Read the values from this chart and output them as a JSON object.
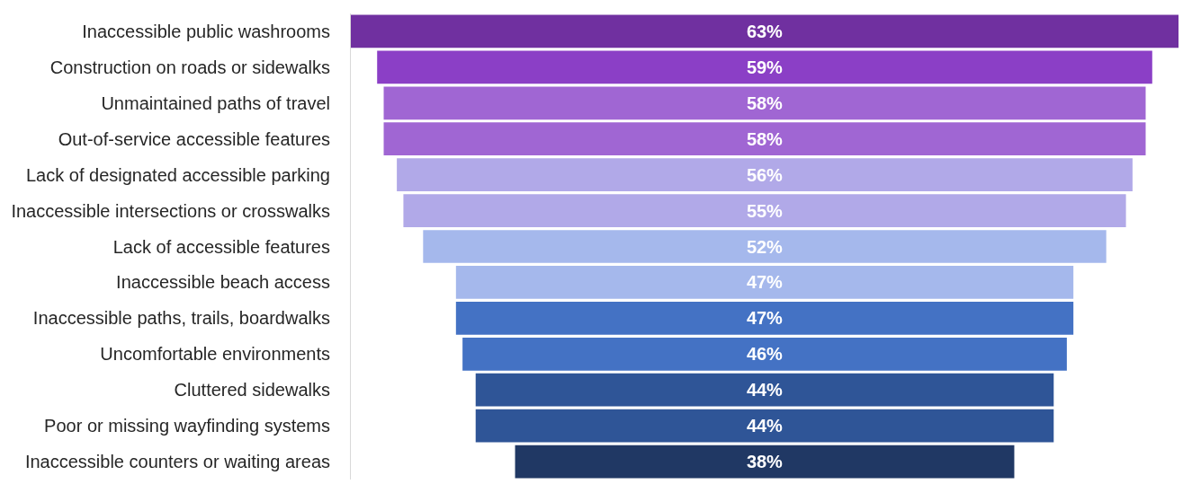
{
  "chart_data": {
    "type": "other",
    "categories": [
      "Inaccessible public washrooms",
      "Construction on roads or sidewalks",
      "Unmaintained paths of travel",
      "Out-of-service accessible features",
      "Lack of designated accessible parking",
      "Inaccessible intersections or crosswalks",
      "Lack of accessible features",
      "Inaccessible beach access",
      "Inaccessible paths, trails, boardwalks",
      "Uncomfortable environments",
      "Cluttered sidewalks",
      "Poor or missing wayfinding systems",
      "Inaccessible counters or waiting areas"
    ],
    "values": [
      63,
      59,
      58,
      58,
      56,
      55,
      52,
      47,
      47,
      46,
      44,
      44,
      38
    ],
    "value_labels": [
      "63%",
      "59%",
      "58%",
      "58%",
      "56%",
      "55%",
      "52%",
      "47%",
      "47%",
      "46%",
      "44%",
      "44%",
      "38%"
    ],
    "colors": [
      "#7030a0",
      "#8b3fc6",
      "#a066d3",
      "#a066d3",
      "#b1a9e8",
      "#b1a9e8",
      "#a5b8ec",
      "#a5b8ec",
      "#4472c4",
      "#4472c4",
      "#2f5597",
      "#2f5597",
      "#203864"
    ]
  }
}
